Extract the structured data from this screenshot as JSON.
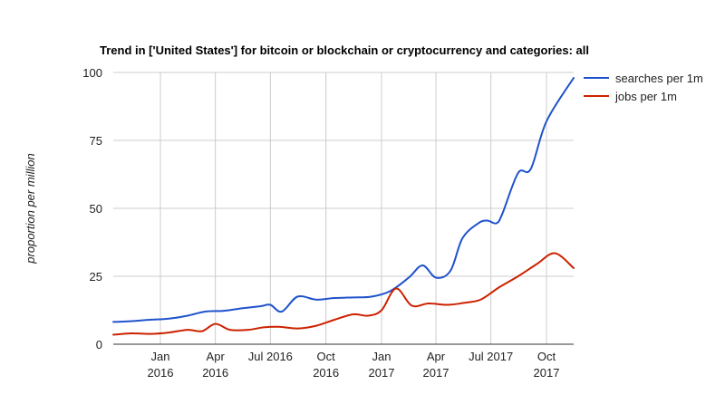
{
  "chart_data": {
    "type": "line",
    "title": "Trend in ['United States'] for bitcoin or blockchain or cryptocurrency and categories: all",
    "xlabel": "",
    "ylabel": "proportion per million",
    "ylim": [
      0,
      100
    ],
    "yticks": [
      0,
      25,
      50,
      75,
      100
    ],
    "grid": true,
    "legend_position": "right",
    "xlim": [
      "2015-10-15",
      "2017-11-15"
    ],
    "xticks": [
      {
        "date": "2016-01-01",
        "line1": "Jan",
        "line2": "2016"
      },
      {
        "date": "2016-04-01",
        "line1": "Apr",
        "line2": "2016"
      },
      {
        "date": "2016-07-01",
        "line1": "Jul 2016",
        "line2": ""
      },
      {
        "date": "2016-10-01",
        "line1": "Oct",
        "line2": "2016"
      },
      {
        "date": "2017-01-01",
        "line1": "Jan",
        "line2": "2017"
      },
      {
        "date": "2017-04-01",
        "line1": "Apr",
        "line2": "2017"
      },
      {
        "date": "2017-07-01",
        "line1": "Jul 2017",
        "line2": ""
      },
      {
        "date": "2017-10-01",
        "line1": "Oct",
        "line2": "2017"
      }
    ],
    "series": [
      {
        "name": "searches per 1m",
        "color": "#1f52cc",
        "points": [
          [
            "2015-10-15",
            8.2
          ],
          [
            "2015-11-15",
            8.5
          ],
          [
            "2015-12-15",
            9.0
          ],
          [
            "2016-01-15",
            9.4
          ],
          [
            "2016-02-15",
            10.5
          ],
          [
            "2016-03-15",
            12.0
          ],
          [
            "2016-04-15",
            12.3
          ],
          [
            "2016-05-15",
            13.2
          ],
          [
            "2016-06-15",
            14.0
          ],
          [
            "2016-07-01",
            14.5
          ],
          [
            "2016-07-20",
            12.0
          ],
          [
            "2016-08-15",
            17.5
          ],
          [
            "2016-09-15",
            16.4
          ],
          [
            "2016-10-15",
            17.0
          ],
          [
            "2016-11-15",
            17.2
          ],
          [
            "2016-12-15",
            17.5
          ],
          [
            "2017-01-15",
            19.5
          ],
          [
            "2017-02-15",
            24.5
          ],
          [
            "2017-03-10",
            29.0
          ],
          [
            "2017-04-01",
            24.5
          ],
          [
            "2017-04-25",
            27.0
          ],
          [
            "2017-05-15",
            39.0
          ],
          [
            "2017-06-10",
            44.5
          ],
          [
            "2017-06-25",
            45.5
          ],
          [
            "2017-07-10",
            44.5
          ],
          [
            "2017-07-20",
            48.0
          ],
          [
            "2017-08-15",
            63.0
          ],
          [
            "2017-09-05",
            64.5
          ],
          [
            "2017-10-01",
            82.0
          ],
          [
            "2017-11-15",
            98.0
          ]
        ]
      },
      {
        "name": "jobs per 1m",
        "color": "#cc2200",
        "points": [
          [
            "2015-10-15",
            3.5
          ],
          [
            "2015-11-15",
            4.0
          ],
          [
            "2015-12-15",
            3.8
          ],
          [
            "2016-01-15",
            4.3
          ],
          [
            "2016-02-15",
            5.3
          ],
          [
            "2016-03-10",
            4.8
          ],
          [
            "2016-04-01",
            7.5
          ],
          [
            "2016-04-25",
            5.3
          ],
          [
            "2016-05-25",
            5.3
          ],
          [
            "2016-06-20",
            6.2
          ],
          [
            "2016-07-15",
            6.4
          ],
          [
            "2016-08-15",
            5.8
          ],
          [
            "2016-09-15",
            6.8
          ],
          [
            "2016-10-15",
            9.0
          ],
          [
            "2016-11-15",
            11.0
          ],
          [
            "2016-12-10",
            10.5
          ],
          [
            "2017-01-01",
            12.5
          ],
          [
            "2017-01-25",
            20.5
          ],
          [
            "2017-02-20",
            14.2
          ],
          [
            "2017-03-20",
            15.0
          ],
          [
            "2017-04-20",
            14.5
          ],
          [
            "2017-05-20",
            15.3
          ],
          [
            "2017-06-15",
            16.5
          ],
          [
            "2017-07-15",
            21.0
          ],
          [
            "2017-08-15",
            25.0
          ],
          [
            "2017-09-15",
            29.5
          ],
          [
            "2017-10-15",
            33.5
          ],
          [
            "2017-11-15",
            28.0
          ]
        ]
      }
    ]
  }
}
